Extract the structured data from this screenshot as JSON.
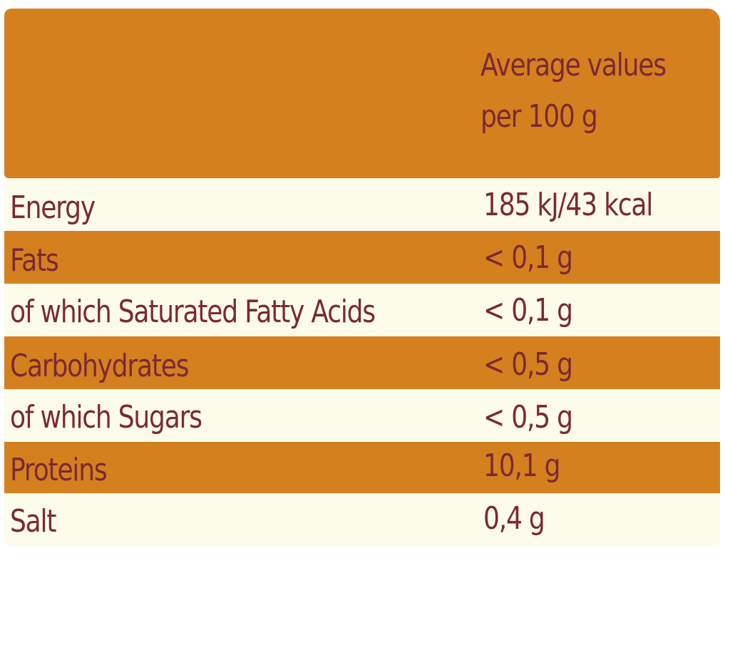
{
  "header": {
    "line1": "Average values",
    "line2": "per 100 g"
  },
  "rows": [
    {
      "name": "Energy",
      "value": "185 kJ/43 kcal"
    },
    {
      "name": "Fats",
      "value": "< 0,1 g"
    },
    {
      "name": "of which Saturated Fatty Acids",
      "value": "< 0,1 g"
    },
    {
      "name": "Carbohydrates",
      "value": "< 0,5 g"
    },
    {
      "name": "of which Sugars",
      "value": "< 0,5 g"
    },
    {
      "name": "Proteins",
      "value": "10,1 g"
    },
    {
      "name": "Salt",
      "value": "0,4 g"
    }
  ],
  "colors": {
    "orange_band": "#d5801e",
    "cream_band": "#fdfbea",
    "text": "#7a2a32"
  }
}
